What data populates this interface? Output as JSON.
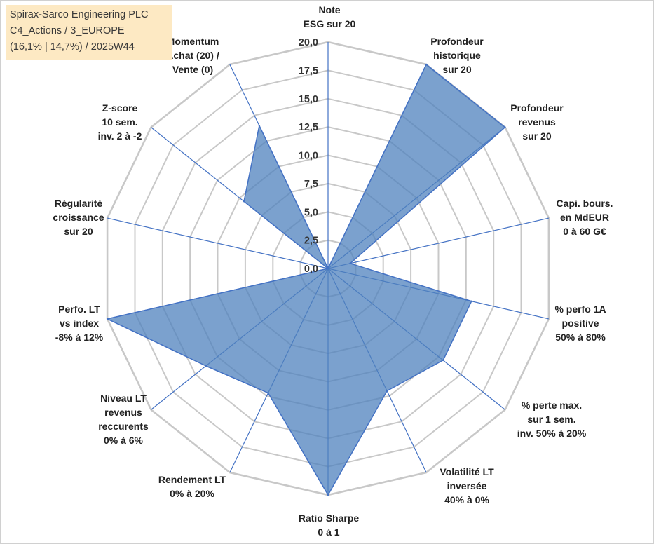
{
  "title_box": {
    "line1": "Spirax-Sarco Engineering PLC",
    "line2": "C4_Actions / 3_EUROPE",
    "line3": "(16,1% | 14,7%) / 2025W44",
    "background": "#fde9c3"
  },
  "chart_data": {
    "type": "radar",
    "rmin": 0,
    "rmax": 20,
    "tick_step": 2.5,
    "tick_labels": [
      "0,0",
      "2,5",
      "5,0",
      "7,5",
      "10,0",
      "12,5",
      "15,0",
      "17,5",
      "20,0"
    ],
    "gridline_color": "#c8c8c8",
    "spoke_color": "#4472c4",
    "fill_color": "#4f81bd",
    "axes": [
      {
        "lines": [
          "Note",
          "ESG sur 20"
        ],
        "value": 0.0
      },
      {
        "lines": [
          "Profondeur",
          "historique",
          "sur 20"
        ],
        "value": 20.0
      },
      {
        "lines": [
          "Profondeur",
          "revenus",
          "sur 20"
        ],
        "value": 20.0
      },
      {
        "lines": [
          "Capi. bours.",
          "en MdEUR",
          "0 à 60 G€"
        ],
        "value": 2.0
      },
      {
        "lines": [
          "% perfo 1A",
          "positive",
          "50% à 80%"
        ],
        "value": 13.0
      },
      {
        "lines": [
          "% perte max.",
          "sur 1 sem.",
          "inv. 50% à 20%"
        ],
        "value": 13.0
      },
      {
        "lines": [
          "Volatilité LT",
          "inversée",
          "40% à 0%"
        ],
        "value": 12.0
      },
      {
        "lines": [
          "Ratio Sharpe",
          "0 à 1"
        ],
        "value": 20.0
      },
      {
        "lines": [
          "Rendement LT",
          "0% à 20%"
        ],
        "value": 12.2
      },
      {
        "lines": [
          "Niveau LT",
          "revenus",
          "reccurents",
          "0% à 6%"
        ],
        "value": 13.8
      },
      {
        "lines": [
          "Perfo. LT",
          "vs index",
          "-8% à 12%"
        ],
        "value": 20.0
      },
      {
        "lines": [
          "Régularité",
          "croissance",
          "sur 20"
        ],
        "value": 0.0
      },
      {
        "lines": [
          "Z-score",
          "10 sem.",
          "inv. 2 à -2"
        ],
        "value": 9.5
      },
      {
        "lines": [
          "Momentum",
          "Achat (20) /",
          "Vente (0)"
        ],
        "value": 14.0
      }
    ]
  }
}
